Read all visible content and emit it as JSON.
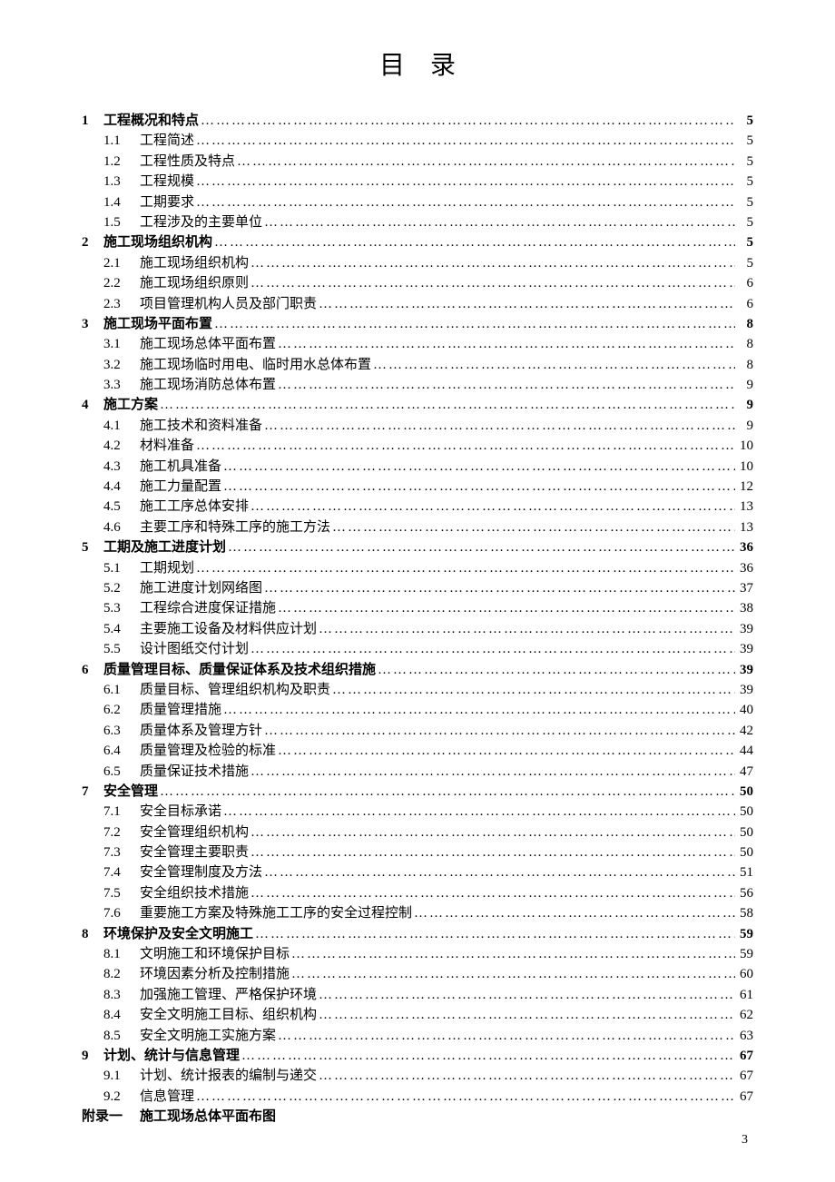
{
  "title": "目录",
  "leader_char": "…",
  "page_number": "3",
  "appendix": {
    "num": "附录一",
    "text": "施工现场总体平面布图"
  },
  "toc": [
    {
      "lvl": 1,
      "num": "1",
      "text": "工程概况和特点",
      "page": "5"
    },
    {
      "lvl": 2,
      "num": "1.1",
      "text": "工程简述",
      "page": "5"
    },
    {
      "lvl": 2,
      "num": "1.2",
      "text": "工程性质及特点",
      "page": "5"
    },
    {
      "lvl": 2,
      "num": "1.3",
      "text": "工程规模",
      "page": "5"
    },
    {
      "lvl": 2,
      "num": "1.4",
      "text": "工期要求",
      "page": "5"
    },
    {
      "lvl": 2,
      "num": "1.5",
      "text": "工程涉及的主要单位",
      "page": "5"
    },
    {
      "lvl": 1,
      "num": "2",
      "text": "施工现场组织机构",
      "page": "5"
    },
    {
      "lvl": 2,
      "num": "2.1",
      "text": "施工现场组织机构",
      "page": "5"
    },
    {
      "lvl": 2,
      "num": "2.2",
      "text": "施工现场组织原则",
      "page": "6"
    },
    {
      "lvl": 2,
      "num": "2.3",
      "text": "项目管理机构人员及部门职责",
      "page": "6"
    },
    {
      "lvl": 1,
      "num": "3",
      "text": "施工现场平面布置",
      "page": "8"
    },
    {
      "lvl": 2,
      "num": "3.1",
      "text": "施工现场总体平面布置",
      "page": "8"
    },
    {
      "lvl": 2,
      "num": "3.2",
      "text": "施工现场临时用电、临时用水总体布置",
      "page": "8"
    },
    {
      "lvl": 2,
      "num": "3.3",
      "text": "施工现场消防总体布置",
      "page": "9"
    },
    {
      "lvl": 1,
      "num": "4",
      "text": "施工方案",
      "page": "9"
    },
    {
      "lvl": 2,
      "num": "4.1",
      "text": "施工技术和资料准备",
      "page": "9"
    },
    {
      "lvl": 2,
      "num": "4.2",
      "text": "材料准备",
      "page": "10"
    },
    {
      "lvl": 2,
      "num": "4.3",
      "text": "施工机具准备",
      "page": "10"
    },
    {
      "lvl": 2,
      "num": "4.4",
      "text": "施工力量配置",
      "page": "12"
    },
    {
      "lvl": 2,
      "num": "4.5",
      "text": "施工工序总体安排",
      "page": "13"
    },
    {
      "lvl": 2,
      "num": "4.6",
      "text": "主要工序和特殊工序的施工方法",
      "page": "13"
    },
    {
      "lvl": 1,
      "num": "5",
      "text": "工期及施工进度计划",
      "page": "36"
    },
    {
      "lvl": 2,
      "num": "5.1",
      "text": "工期规划",
      "page": "36"
    },
    {
      "lvl": 2,
      "num": "5.2",
      "text": "施工进度计划网络图",
      "page": "37"
    },
    {
      "lvl": 2,
      "num": "5.3",
      "text": "工程综合进度保证措施",
      "page": "38"
    },
    {
      "lvl": 2,
      "num": "5.4",
      "text": "主要施工设备及材料供应计划",
      "page": "39"
    },
    {
      "lvl": 2,
      "num": "5.5",
      "text": "设计图纸交付计划",
      "page": "39"
    },
    {
      "lvl": 1,
      "num": "6",
      "text": "质量管理目标、质量保证体系及技术组织措施",
      "page": "39"
    },
    {
      "lvl": 2,
      "num": "6.1",
      "text": "质量目标、管理组织机构及职责",
      "page": "39"
    },
    {
      "lvl": 2,
      "num": "6.2",
      "text": "质量管理措施",
      "page": "40"
    },
    {
      "lvl": 2,
      "num": "6.3",
      "text": "质量体系及管理方针",
      "page": "42"
    },
    {
      "lvl": 2,
      "num": "6.4",
      "text": "质量管理及检验的标准",
      "page": "44"
    },
    {
      "lvl": 2,
      "num": "6.5",
      "text": "质量保证技术措施",
      "page": "47"
    },
    {
      "lvl": 1,
      "num": "7",
      "text": "安全管理",
      "page": "50"
    },
    {
      "lvl": 2,
      "num": "7.1",
      "text": "安全目标承诺",
      "page": "50"
    },
    {
      "lvl": 2,
      "num": "7.2",
      "text": "安全管理组织机构",
      "page": "50"
    },
    {
      "lvl": 2,
      "num": "7.3",
      "text": "安全管理主要职责",
      "page": "50"
    },
    {
      "lvl": 2,
      "num": "7.4",
      "text": "安全管理制度及方法",
      "page": "51"
    },
    {
      "lvl": 2,
      "num": "7.5",
      "text": "安全组织技术措施",
      "page": "56"
    },
    {
      "lvl": 2,
      "num": "7.6",
      "text": "重要施工方案及特殊施工工序的安全过程控制",
      "page": "58"
    },
    {
      "lvl": 1,
      "num": "8",
      "text": "环境保护及安全文明施工",
      "page": "59"
    },
    {
      "lvl": 2,
      "num": "8.1",
      "text": "文明施工和环境保护目标",
      "page": "59"
    },
    {
      "lvl": 2,
      "num": "8.2",
      "text": "环境因素分析及控制措施",
      "page": "60"
    },
    {
      "lvl": 2,
      "num": "8.3",
      "text": "加强施工管理、严格保护环境",
      "page": "61"
    },
    {
      "lvl": 2,
      "num": "8.4",
      "text": "安全文明施工目标、组织机构",
      "page": "62"
    },
    {
      "lvl": 2,
      "num": "8.5",
      "text": "安全文明施工实施方案",
      "page": "63"
    },
    {
      "lvl": 1,
      "num": "9",
      "text": "计划、统计与信息管理",
      "page": "67"
    },
    {
      "lvl": 2,
      "num": "9.1",
      "text": "计划、统计报表的编制与递交",
      "page": "67"
    },
    {
      "lvl": 2,
      "num": "9.2",
      "text": "信息管理",
      "page": "67"
    }
  ]
}
